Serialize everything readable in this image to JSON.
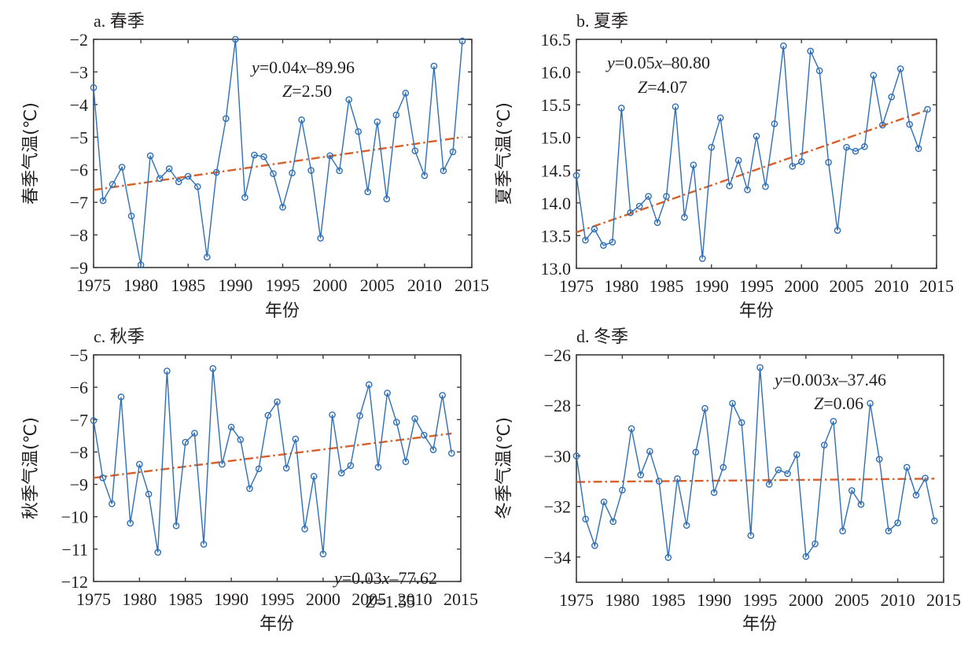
{
  "colors": {
    "series": "#2f6fb6",
    "trend": "#d9602b",
    "axis": "#3c3c3c"
  },
  "chart_data": [
    {
      "type": "line",
      "title": "a. 春季",
      "xlabel": "年份",
      "ylabel": "春季气温(℃)",
      "xlim": [
        1975,
        2015
      ],
      "ylim": [
        -9,
        -2
      ],
      "xticks": [
        1975,
        1980,
        1985,
        1990,
        1995,
        2000,
        2005,
        2010,
        2015
      ],
      "yticks": [
        -9,
        -8,
        -7,
        -6,
        -5,
        -4,
        -3,
        -2
      ],
      "ytick_labels": [
        "−9",
        "−8",
        "−7",
        "−6",
        "−5",
        "−4",
        "−3",
        "−2"
      ],
      "x": [
        1975,
        1976,
        1977,
        1978,
        1979,
        1980,
        1981,
        1982,
        1983,
        1984,
        1985,
        1986,
        1987,
        1988,
        1989,
        1990,
        1991,
        1992,
        1993,
        1994,
        1995,
        1996,
        1997,
        1998,
        1999,
        2000,
        2001,
        2002,
        2003,
        2004,
        2005,
        2006,
        2007,
        2008,
        2009,
        2010,
        2011,
        2012,
        2013,
        2014
      ],
      "values": [
        -3.48,
        -6.95,
        -6.45,
        -5.92,
        -7.42,
        -8.92,
        -5.57,
        -6.27,
        -5.97,
        -6.37,
        -6.2,
        -6.52,
        -8.68,
        -6.08,
        -4.43,
        -2.0,
        -6.85,
        -5.55,
        -5.6,
        -6.12,
        -7.15,
        -6.1,
        -4.47,
        -6.02,
        -8.1,
        -5.57,
        -6.03,
        -3.85,
        -4.83,
        -6.68,
        -4.53,
        -6.9,
        -4.32,
        -3.65,
        -5.42,
        -6.18,
        -2.82,
        -6.03,
        -5.45,
        -2.05
      ],
      "trend": {
        "start": [
          1975,
          -6.62
        ],
        "end": [
          2014,
          -5.0
        ]
      },
      "equation": {
        "y": "y",
        "eq": "=0.04",
        "x": "x",
        "rest": "–89.96"
      },
      "z": {
        "z": "Z",
        "value": "=2.50"
      },
      "annotation_position": "top-center"
    },
    {
      "type": "line",
      "title": "b. 夏季",
      "xlabel": "年份",
      "ylabel": "夏季气温(℃)",
      "xlim": [
        1975,
        2015
      ],
      "ylim": [
        13.0,
        16.5
      ],
      "xticks": [
        1975,
        1980,
        1985,
        1990,
        1995,
        2000,
        2005,
        2010,
        2015
      ],
      "yticks": [
        13.0,
        13.5,
        14.0,
        14.5,
        15.0,
        15.5,
        16.0,
        16.5
      ],
      "ytick_labels": [
        "13.0",
        "13.5",
        "14.0",
        "14.5",
        "15.0",
        "15.5",
        "16.0",
        "16.5"
      ],
      "x": [
        1975,
        1976,
        1977,
        1978,
        1979,
        1980,
        1981,
        1982,
        1983,
        1984,
        1985,
        1986,
        1987,
        1988,
        1989,
        1990,
        1991,
        1992,
        1993,
        1994,
        1995,
        1996,
        1997,
        1998,
        1999,
        2000,
        2001,
        2002,
        2003,
        2004,
        2005,
        2006,
        2007,
        2008,
        2009,
        2010,
        2011,
        2012,
        2013,
        2014
      ],
      "values": [
        14.42,
        13.43,
        13.6,
        13.35,
        13.4,
        15.45,
        13.85,
        13.95,
        14.1,
        13.7,
        14.1,
        15.47,
        13.78,
        14.58,
        13.15,
        14.85,
        15.3,
        14.26,
        14.65,
        14.2,
        15.02,
        14.25,
        15.21,
        16.4,
        14.56,
        14.63,
        16.32,
        16.02,
        14.62,
        13.58,
        14.85,
        14.79,
        14.86,
        15.95,
        15.19,
        15.62,
        16.05,
        15.2,
        14.83,
        15.43
      ],
      "trend": {
        "start": [
          1975,
          13.55
        ],
        "end": [
          2014,
          15.42
        ]
      },
      "equation": {
        "y": "y",
        "eq": "=0.05",
        "x": "x",
        "rest": "–80.80"
      },
      "z": {
        "z": "Z",
        "value": "=4.07"
      },
      "annotation_position": "top-left"
    },
    {
      "type": "line",
      "title": "c. 秋季",
      "xlabel": "年份",
      "ylabel": "秋季气温(℃)",
      "xlim": [
        1975,
        2015
      ],
      "ylim": [
        -12,
        -5
      ],
      "xticks": [
        1975,
        1980,
        1985,
        1990,
        1995,
        2000,
        2005,
        2010,
        2015
      ],
      "yticks": [
        -12,
        -11,
        -10,
        -9,
        -8,
        -7,
        -6,
        -5
      ],
      "ytick_labels": [
        "−12",
        "−11",
        "−10",
        "−9",
        "−8",
        "−7",
        "−6",
        "−5"
      ],
      "x": [
        1975,
        1976,
        1977,
        1978,
        1979,
        1980,
        1981,
        1982,
        1983,
        1984,
        1985,
        1986,
        1987,
        1988,
        1989,
        1990,
        1991,
        1992,
        1993,
        1994,
        1995,
        1996,
        1997,
        1998,
        1999,
        2000,
        2001,
        2002,
        2003,
        2004,
        2005,
        2006,
        2007,
        2008,
        2009,
        2010,
        2011,
        2012,
        2013,
        2014
      ],
      "values": [
        -7.03,
        -8.8,
        -9.6,
        -6.3,
        -10.2,
        -8.38,
        -9.3,
        -11.1,
        -5.5,
        -10.28,
        -7.7,
        -7.42,
        -10.85,
        -5.42,
        -8.38,
        -7.23,
        -7.62,
        -9.13,
        -8.52,
        -6.87,
        -6.45,
        -8.5,
        -7.6,
        -10.38,
        -8.75,
        -11.15,
        -6.85,
        -8.65,
        -8.42,
        -6.88,
        -5.92,
        -8.47,
        -6.18,
        -7.08,
        -8.3,
        -6.97,
        -7.48,
        -7.93,
        -6.25,
        -8.04
      ],
      "trend": {
        "start": [
          1975,
          -8.8
        ],
        "end": [
          2014,
          -7.43
        ]
      },
      "equation": {
        "y": "y",
        "eq": "=0.03",
        "x": "x",
        "rest": "–77.62"
      },
      "z": {
        "z": "Z",
        "value": "=1.55"
      },
      "annotation_position": "bottom-right"
    },
    {
      "type": "line",
      "title": "d. 冬季",
      "xlabel": "年份",
      "ylabel": "冬季气温(℃)",
      "xlim": [
        1975,
        2015
      ],
      "ylim": [
        -35,
        -26
      ],
      "xticks": [
        1975,
        1980,
        1985,
        1990,
        1995,
        2000,
        2005,
        2010,
        2015
      ],
      "yticks": [
        -34,
        -32,
        -30,
        -28,
        -26
      ],
      "ytick_labels": [
        "−34",
        "−32",
        "−30",
        "−28",
        "−26"
      ],
      "x": [
        1975,
        1976,
        1977,
        1978,
        1979,
        1980,
        1981,
        1982,
        1983,
        1984,
        1985,
        1986,
        1987,
        1988,
        1989,
        1990,
        1991,
        1992,
        1993,
        1994,
        1995,
        1996,
        1997,
        1998,
        1999,
        2000,
        2001,
        2002,
        2003,
        2004,
        2005,
        2006,
        2007,
        2008,
        2009,
        2010,
        2011,
        2012,
        2013,
        2014
      ],
      "values": [
        -30.0,
        -32.5,
        -33.55,
        -31.82,
        -32.6,
        -31.35,
        -28.92,
        -30.75,
        -29.82,
        -31.0,
        -34.02,
        -30.9,
        -32.75,
        -29.85,
        -28.12,
        -31.45,
        -30.45,
        -27.92,
        -28.68,
        -33.15,
        -26.5,
        -31.12,
        -30.55,
        -30.7,
        -29.95,
        -33.98,
        -33.48,
        -29.57,
        -28.63,
        -32.97,
        -31.37,
        -31.92,
        -27.92,
        -30.13,
        -32.97,
        -32.65,
        -30.45,
        -31.55,
        -30.88,
        -32.57
      ],
      "trend": {
        "start": [
          1975,
          -31.03
        ],
        "end": [
          2014,
          -30.9
        ]
      },
      "equation": {
        "y": "y",
        "eq": "=0.003",
        "x": "x",
        "rest": "–37.46"
      },
      "z": {
        "z": "Z",
        "value": "=0.06"
      },
      "annotation_position": "top-right"
    }
  ]
}
